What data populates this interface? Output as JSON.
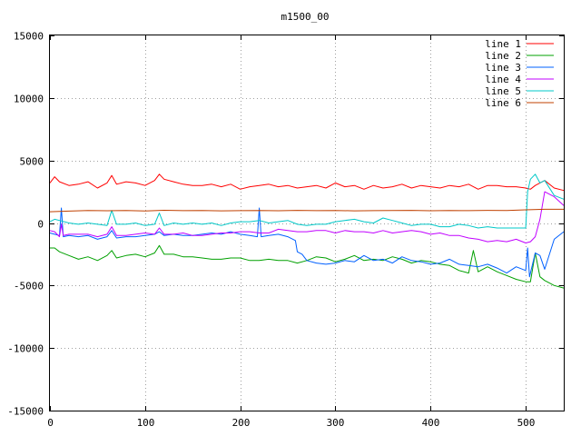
{
  "chart_data": {
    "type": "line",
    "title": "m1500_00",
    "xlabel": "",
    "ylabel": "",
    "xlim": [
      0,
      540
    ],
    "ylim": [
      -15000,
      15000
    ],
    "xticks": [
      0,
      100,
      200,
      300,
      400,
      500
    ],
    "yticks": [
      -15000,
      -10000,
      -5000,
      0,
      5000,
      10000,
      15000
    ],
    "grid": true,
    "legend_position": "top-right",
    "series": [
      {
        "name": "line 1",
        "color": "#ff0000",
        "x": [
          0,
          5,
          10,
          20,
          30,
          40,
          50,
          60,
          65,
          70,
          80,
          90,
          100,
          110,
          115,
          120,
          130,
          140,
          150,
          160,
          170,
          180,
          190,
          200,
          210,
          220,
          230,
          240,
          250,
          260,
          270,
          280,
          290,
          300,
          310,
          320,
          330,
          340,
          350,
          360,
          370,
          380,
          390,
          400,
          410,
          420,
          430,
          440,
          450,
          460,
          470,
          480,
          490,
          500,
          505,
          510,
          520,
          530,
          540
        ],
        "y": [
          3200,
          3700,
          3300,
          3000,
          3100,
          3300,
          2800,
          3200,
          3800,
          3100,
          3300,
          3200,
          3000,
          3400,
          3900,
          3500,
          3300,
          3100,
          3000,
          3000,
          3100,
          2900,
          3100,
          2700,
          2900,
          3000,
          3100,
          2900,
          3000,
          2800,
          2900,
          3000,
          2800,
          3200,
          2900,
          3000,
          2700,
          3000,
          2800,
          2900,
          3100,
          2800,
          3000,
          2900,
          2800,
          3000,
          2900,
          3100,
          2700,
          3000,
          3000,
          2900,
          2900,
          2800,
          2700,
          3000,
          3400,
          2800,
          2600
        ]
      },
      {
        "name": "line 2",
        "color": "#00a000",
        "x": [
          0,
          5,
          10,
          20,
          30,
          40,
          50,
          60,
          65,
          70,
          80,
          90,
          100,
          110,
          115,
          120,
          130,
          140,
          150,
          160,
          170,
          180,
          190,
          200,
          210,
          220,
          230,
          240,
          250,
          260,
          270,
          280,
          290,
          300,
          310,
          320,
          330,
          340,
          350,
          360,
          370,
          380,
          390,
          400,
          410,
          420,
          430,
          440,
          445,
          450,
          460,
          470,
          480,
          490,
          500,
          505,
          510,
          515,
          520,
          530,
          540
        ],
        "y": [
          -2000,
          -2000,
          -2300,
          -2600,
          -2900,
          -2700,
          -3000,
          -2600,
          -2200,
          -2800,
          -2600,
          -2500,
          -2700,
          -2400,
          -1800,
          -2500,
          -2500,
          -2700,
          -2700,
          -2800,
          -2900,
          -2900,
          -2800,
          -2800,
          -3000,
          -3000,
          -2900,
          -3000,
          -3000,
          -3200,
          -3000,
          -2700,
          -2800,
          -3100,
          -2900,
          -2600,
          -3000,
          -2900,
          -3000,
          -2700,
          -2900,
          -3200,
          -3000,
          -3100,
          -3300,
          -3400,
          -3800,
          -4000,
          -2200,
          -3900,
          -3500,
          -3900,
          -4200,
          -4500,
          -4700,
          -4700,
          -2400,
          -4300,
          -4600,
          -5000,
          -5200
        ]
      },
      {
        "name": "line 3",
        "color": "#0060ff",
        "x": [
          0,
          5,
          10,
          12,
          14,
          20,
          30,
          40,
          50,
          60,
          65,
          70,
          80,
          90,
          100,
          110,
          115,
          120,
          130,
          140,
          150,
          160,
          170,
          180,
          190,
          200,
          210,
          218,
          220,
          222,
          230,
          240,
          250,
          258,
          260,
          265,
          270,
          280,
          290,
          300,
          310,
          320,
          330,
          340,
          350,
          360,
          370,
          380,
          390,
          400,
          410,
          420,
          430,
          440,
          450,
          460,
          470,
          480,
          490,
          500,
          502,
          504,
          510,
          515,
          520,
          530,
          540
        ],
        "y": [
          -800,
          -900,
          -1000,
          1200,
          -1100,
          -1000,
          -1100,
          -1000,
          -1300,
          -1100,
          -600,
          -1200,
          -1100,
          -1100,
          -1000,
          -900,
          -700,
          -1000,
          -900,
          -1000,
          -1000,
          -900,
          -800,
          -900,
          -700,
          -900,
          -1000,
          -1100,
          1200,
          -1100,
          -1000,
          -900,
          -1100,
          -1400,
          -2300,
          -2500,
          -3000,
          -3200,
          -3300,
          -3200,
          -3000,
          -3100,
          -2600,
          -3000,
          -2900,
          -3200,
          -2700,
          -3000,
          -3100,
          -3300,
          -3200,
          -2900,
          -3300,
          -3400,
          -3500,
          -3300,
          -3600,
          -4000,
          -3500,
          -3800,
          -2000,
          -4300,
          -2400,
          -2600,
          -3700,
          -1300,
          -700
        ]
      },
      {
        "name": "line 4",
        "color": "#c000ff",
        "x": [
          0,
          5,
          10,
          12,
          14,
          20,
          30,
          40,
          50,
          60,
          65,
          70,
          80,
          90,
          100,
          110,
          115,
          120,
          130,
          140,
          150,
          160,
          170,
          180,
          190,
          200,
          210,
          220,
          230,
          240,
          250,
          260,
          270,
          280,
          290,
          300,
          310,
          320,
          330,
          340,
          350,
          360,
          370,
          380,
          390,
          400,
          410,
          420,
          430,
          440,
          450,
          460,
          470,
          480,
          490,
          500,
          505,
          510,
          515,
          520,
          530,
          540
        ],
        "y": [
          -600,
          -700,
          -1100,
          -100,
          -1000,
          -900,
          -900,
          -900,
          -1100,
          -900,
          -300,
          -1000,
          -1000,
          -900,
          -800,
          -900,
          -400,
          -900,
          -900,
          -800,
          -1000,
          -1000,
          -900,
          -800,
          -800,
          -700,
          -700,
          -800,
          -800,
          -500,
          -600,
          -700,
          -700,
          -600,
          -600,
          -800,
          -600,
          -700,
          -700,
          -800,
          -600,
          -800,
          -700,
          -600,
          -700,
          -900,
          -800,
          -1000,
          -1000,
          -1200,
          -1300,
          -1500,
          -1400,
          -1500,
          -1300,
          -1600,
          -1500,
          -1100,
          300,
          2500,
          2100,
          1400
        ]
      },
      {
        "name": "line 5",
        "color": "#00c8c8",
        "x": [
          0,
          5,
          10,
          20,
          30,
          40,
          50,
          60,
          65,
          70,
          80,
          90,
          100,
          110,
          115,
          120,
          130,
          140,
          150,
          160,
          170,
          180,
          190,
          200,
          210,
          220,
          230,
          240,
          250,
          260,
          270,
          280,
          290,
          300,
          310,
          320,
          330,
          340,
          350,
          360,
          370,
          380,
          390,
          400,
          410,
          420,
          430,
          440,
          450,
          460,
          470,
          480,
          490,
          500,
          502,
          505,
          510,
          515,
          520,
          530,
          540
        ],
        "y": [
          100,
          300,
          200,
          0,
          -100,
          0,
          -100,
          -200,
          1000,
          -100,
          -100,
          0,
          -200,
          -100,
          800,
          -200,
          0,
          -100,
          0,
          -100,
          0,
          -200,
          0,
          100,
          100,
          200,
          0,
          100,
          200,
          -100,
          -200,
          -100,
          -100,
          100,
          200,
          300,
          100,
          0,
          400,
          200,
          0,
          -200,
          -100,
          -100,
          -300,
          -300,
          -100,
          -200,
          -400,
          -300,
          -400,
          -400,
          -400,
          -400,
          2500,
          3500,
          3900,
          3200,
          3400,
          2200,
          1900
        ]
      },
      {
        "name": "line 6",
        "color": "#c04000",
        "x": [
          0,
          20,
          40,
          60,
          80,
          100,
          120,
          140,
          160,
          180,
          200,
          220,
          240,
          260,
          280,
          300,
          320,
          340,
          360,
          380,
          400,
          420,
          440,
          460,
          480,
          500,
          520,
          540
        ],
        "y": [
          900,
          950,
          1000,
          980,
          1000,
          960,
          1020,
          990,
          1000,
          970,
          990,
          1000,
          980,
          1010,
          990,
          1000,
          970,
          990,
          1000,
          1010,
          980,
          1000,
          990,
          1010,
          1000,
          1050,
          1100,
          1100
        ]
      }
    ]
  }
}
